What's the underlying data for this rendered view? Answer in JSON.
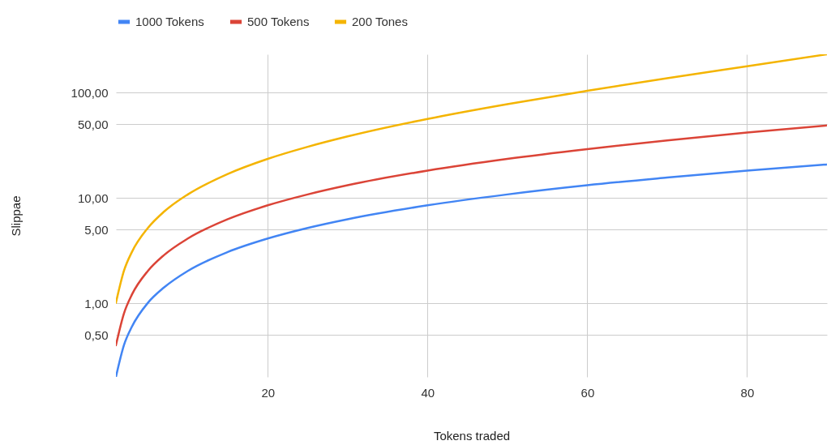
{
  "chart_data": {
    "type": "line",
    "xlabel": "Tokens traded",
    "ylabel": "Slippae",
    "log": "y",
    "grid": true,
    "legend": "top",
    "line_style": "solid",
    "x": [
      1,
      2,
      3,
      5,
      7,
      10,
      15,
      20,
      25,
      30,
      40,
      50,
      60,
      70,
      80,
      90
    ],
    "xlim": [
      1,
      90
    ],
    "xticks": [
      20,
      40,
      60,
      80
    ],
    "ylim": [
      0.2,
      231
    ],
    "yticks": [
      {
        "value": 0.5,
        "label": "0,50"
      },
      {
        "value": 1,
        "label": "1,00"
      },
      {
        "value": 5,
        "label": "5,00"
      },
      {
        "value": 10,
        "label": "10,00"
      },
      {
        "value": 50,
        "label": "50,00"
      },
      {
        "value": 100,
        "label": "100,00"
      }
    ],
    "series": [
      {
        "name": "1000 Tokens",
        "color": "#4285f4",
        "values": [
          0.2,
          0.4,
          0.6,
          1.01,
          1.41,
          2.03,
          3.07,
          4.12,
          5.19,
          6.28,
          8.51,
          10.8,
          13.2,
          15.6,
          18.2,
          20.8
        ]
      },
      {
        "name": "500 Tokens",
        "color": "#db4437",
        "values": [
          0.4,
          0.8,
          1.21,
          2.03,
          2.86,
          4.12,
          6.28,
          8.51,
          10.8,
          13.2,
          18.2,
          23.5,
          29.1,
          35.2,
          41.7,
          48.7
        ]
      },
      {
        "name": "200 Tones",
        "color": "#f4b400",
        "values": [
          1.01,
          2.03,
          3.07,
          5.19,
          7.39,
          10.8,
          16.9,
          23.5,
          30.6,
          38.4,
          56.3,
          77.8,
          104,
          137,
          178,
          231
        ]
      }
    ]
  }
}
